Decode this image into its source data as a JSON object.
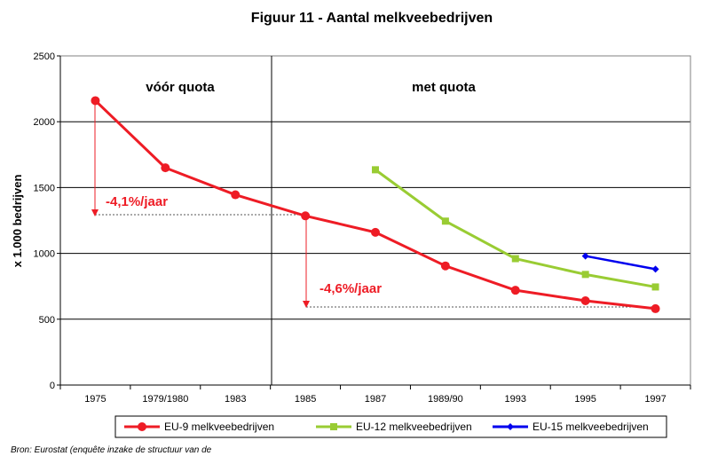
{
  "chart_data": {
    "type": "line",
    "title": "Figuur 11 - Aantal melkveebedrijven",
    "ylabel": "x 1.000 bedrijven",
    "xlabel": "",
    "ylim": [
      0,
      2500
    ],
    "yticks": [
      0,
      500,
      1000,
      1500,
      2000,
      2500
    ],
    "categories": [
      "1975",
      "1979/1980",
      "1983",
      "1985",
      "1987",
      "1989/90",
      "1993",
      "1995",
      "1997"
    ],
    "grid": true,
    "legend_position": "bottom",
    "series": [
      {
        "name": "EU-9 melkveebedrijven",
        "color": "#ee1c25",
        "marker": "circle",
        "values": [
          2160,
          1650,
          1445,
          1285,
          1160,
          905,
          720,
          640,
          580
        ]
      },
      {
        "name": "EU-12 melkveebedrijven",
        "color": "#99cc33",
        "marker": "square",
        "values": [
          null,
          null,
          null,
          null,
          1635,
          1245,
          960,
          840,
          745
        ]
      },
      {
        "name": "EU-15 melkveebedrijven",
        "color": "#0000ee",
        "marker": "diamond",
        "values": [
          null,
          null,
          null,
          null,
          null,
          null,
          null,
          980,
          880
        ]
      }
    ],
    "regions": [
      "vóór quota",
      "met quota"
    ],
    "annotations": [
      "-4,1%/jaar",
      "-4,6%/jaar"
    ]
  },
  "source": "Bron: Eurostat (enquête inzake de structuur van de"
}
